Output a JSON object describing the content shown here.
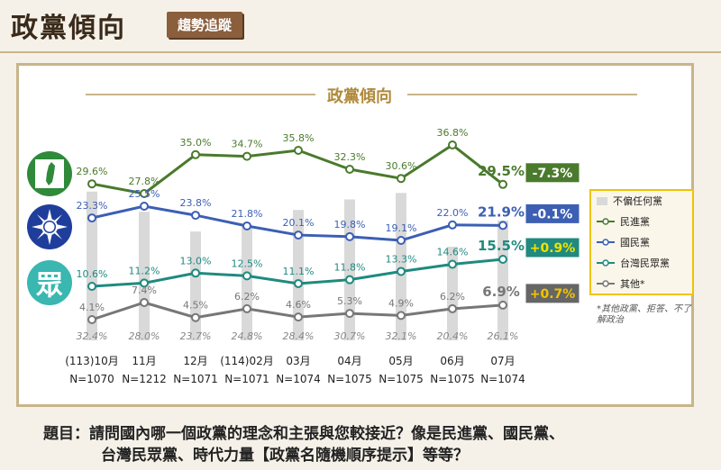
{
  "header": {
    "title": "政黨傾向",
    "badge": "趨勢追蹤"
  },
  "panel_title": "政黨傾向",
  "question": {
    "line1": "題目：請問國內哪一個政黨的理念和主張與您較接近？像是民進黨、國民黨、",
    "line2": "台灣民眾黨、時代力量【政黨名隨機順序提示】等等？"
  },
  "logos": {
    "tpp_text": "眾"
  },
  "legend": {
    "items": [
      "不偏任何黨",
      "民進黨",
      "國民黨",
      "台灣民眾黨",
      "其他*"
    ],
    "note": "*其他政黨、拒答、不了解政治"
  },
  "colors": {
    "dpp": "#4a7a2c",
    "kmt": "#3c5fb4",
    "tpp": "#1f8a80",
    "other": "#777777",
    "neutral": "#d9d9d9",
    "changes_gray": "#666666"
  },
  "chart_data": {
    "type": "line",
    "categories": [
      "(113)10月",
      "11月",
      "12月",
      "(114)02月",
      "03月",
      "04月",
      "05月",
      "06月",
      "07月"
    ],
    "sample_sizes": [
      "N=1070",
      "N=1212",
      "N=1071",
      "N=1071",
      "N=1074",
      "N=1075",
      "N=1075",
      "N=1075",
      "N=1074"
    ],
    "series": [
      {
        "name": "民進黨",
        "values": [
          29.6,
          27.8,
          35.0,
          34.7,
          35.8,
          32.3,
          30.6,
          36.8,
          29.5
        ],
        "labels": [
          "29.6%",
          "27.8%",
          "35.0%",
          "34.7%",
          "35.8%",
          "32.3%",
          "30.6%",
          "36.8%",
          "29.5%"
        ],
        "change": "-7.3%"
      },
      {
        "name": "國民黨",
        "values": [
          23.3,
          25.5,
          23.8,
          21.8,
          20.1,
          19.8,
          19.1,
          22.0,
          21.9
        ],
        "labels": [
          "23.3%",
          "25.5%",
          "23.8%",
          "21.8%",
          "20.1%",
          "19.8%",
          "19.1%",
          "22.0%",
          "21.9%"
        ],
        "change": "-0.1%"
      },
      {
        "name": "台灣民眾黨",
        "values": [
          10.6,
          11.2,
          13.0,
          12.5,
          11.1,
          11.8,
          13.3,
          14.6,
          15.5
        ],
        "labels": [
          "10.6%",
          "11.2%",
          "13.0%",
          "12.5%",
          "11.1%",
          "11.8%",
          "13.3%",
          "14.6%",
          "15.5%"
        ],
        "change": "+0.9%"
      },
      {
        "name": "其他*",
        "values": [
          4.1,
          7.4,
          4.5,
          6.2,
          4.6,
          5.3,
          4.9,
          6.2,
          6.9
        ],
        "labels": [
          "4.1%",
          "7.4%",
          "4.5%",
          "6.2%",
          "4.6%",
          "5.3%",
          "4.9%",
          "6.2%",
          "6.9%"
        ],
        "change": "+0.7%"
      }
    ],
    "bars": {
      "name": "不偏任何黨",
      "values": [
        32.4,
        28.0,
        23.7,
        24.8,
        28.4,
        30.7,
        32.1,
        20.4,
        26.1
      ],
      "labels": [
        "32.4%",
        "28.0%",
        "23.7%",
        "24.8%",
        "28.4%",
        "30.7%",
        "32.1%",
        "20.4%",
        "26.1%"
      ]
    }
  }
}
